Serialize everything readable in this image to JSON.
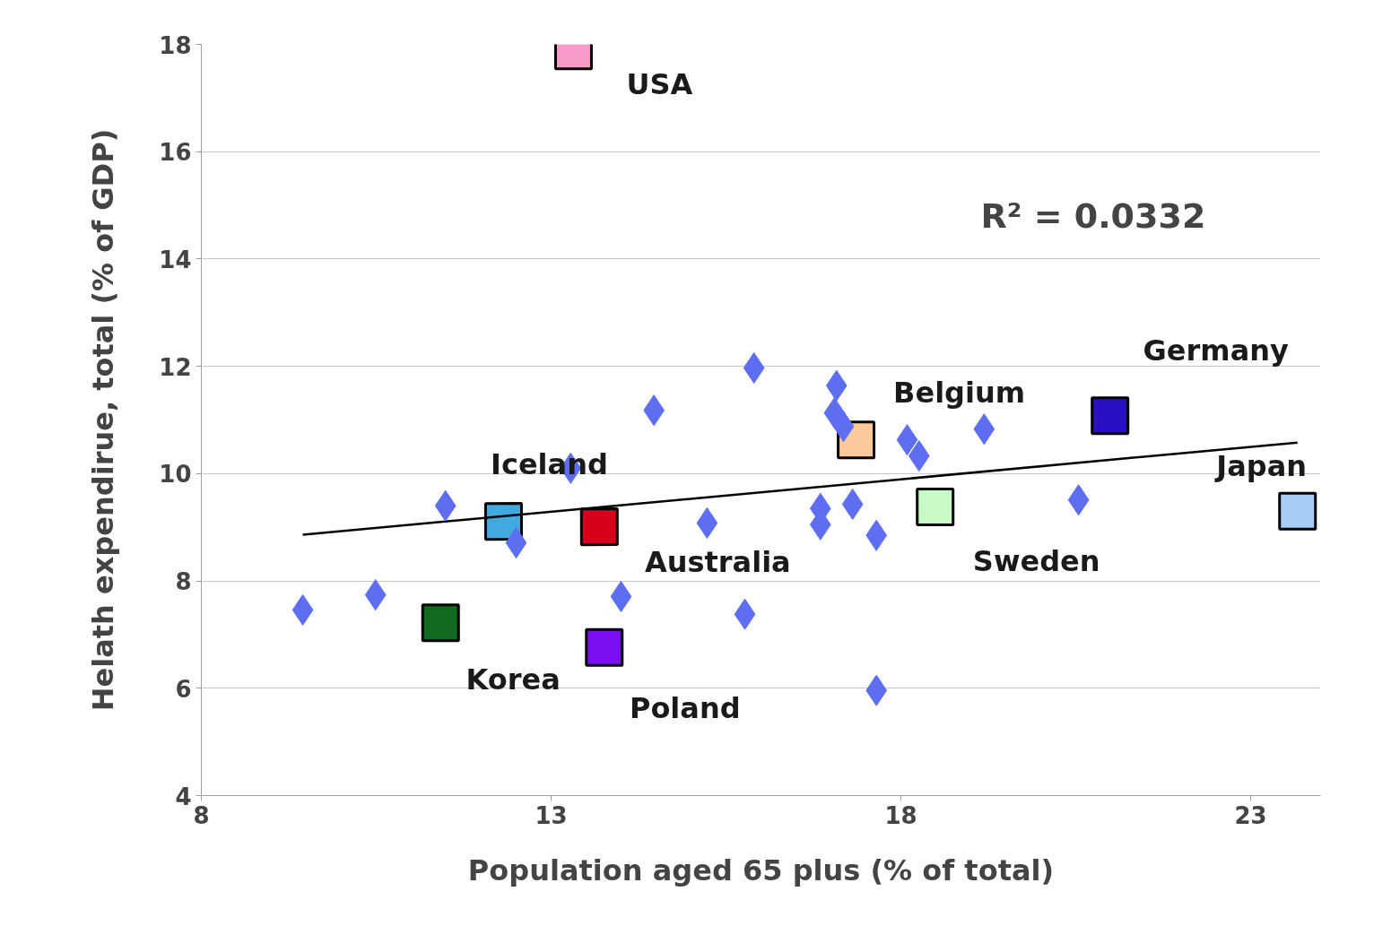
{
  "chart_data": {
    "type": "scatter",
    "xlabel": "Population aged 65 plus (% of total)",
    "ylabel": "Helath expendirue, total (% of GDP)",
    "xlim": [
      8,
      24
    ],
    "ylim": [
      4,
      18
    ],
    "xticks": [
      8,
      13,
      18,
      23
    ],
    "yticks": [
      4,
      6,
      8,
      10,
      12,
      14,
      16,
      18
    ],
    "grid": "y",
    "annotations": [
      "R² = 0.0332"
    ],
    "series": [
      {
        "color": "#5d6ef0",
        "marker": "diamond",
        "x": [
          9.45,
          10.49,
          11.49,
          12.5,
          13.28,
          14.47,
          14.0,
          15.23,
          15.9,
          15.77,
          17.08,
          17.05,
          17.18,
          16.85,
          16.85,
          17.31,
          17.65,
          17.65,
          18.09,
          18.26,
          19.19,
          20.54
        ],
        "values": [
          7.46,
          7.74,
          9.4,
          8.71,
          10.1,
          11.18,
          7.71,
          9.08,
          11.97,
          7.38,
          11.64,
          11.13,
          10.88,
          9.35,
          9.05,
          9.43,
          8.85,
          5.96,
          10.63,
          10.33,
          10.83,
          9.51
        ]
      },
      {
        "name": "USA",
        "color": "#f79ac8",
        "marker": "square",
        "x": [
          13.32
        ],
        "values": [
          17.88
        ]
      },
      {
        "name": "Iceland",
        "color": "#3fa9e0",
        "marker": "square",
        "x": [
          12.32
        ],
        "values": [
          9.11
        ]
      },
      {
        "name": "Australia",
        "color": "#d6001c",
        "marker": "square",
        "x": [
          13.69
        ],
        "values": [
          9.01
        ]
      },
      {
        "name": "Korea",
        "color": "#106b1e",
        "marker": "square",
        "x": [
          11.42
        ],
        "values": [
          7.22
        ]
      },
      {
        "name": "Poland",
        "color": "#7a10f0",
        "marker": "square",
        "x": [
          13.76
        ],
        "values": [
          6.76
        ]
      },
      {
        "name": "Belgium",
        "color": "#fbc99a",
        "marker": "square",
        "x": [
          17.36
        ],
        "values": [
          10.63
        ]
      },
      {
        "name": "Germany",
        "color": "#2a10c4",
        "marker": "square",
        "x": [
          20.99
        ],
        "values": [
          11.08
        ]
      },
      {
        "name": "Sweden",
        "color": "#c8fac8",
        "marker": "square",
        "x": [
          18.49
        ],
        "values": [
          9.38
        ]
      },
      {
        "name": "Japan",
        "color": "#a6cef7",
        "marker": "square",
        "x": [
          23.67
        ],
        "values": [
          9.3
        ]
      },
      {
        "type": "line",
        "color": "#000000",
        "marker": "none",
        "x": [
          9.45,
          23.67
        ],
        "values": [
          8.86,
          10.58
        ]
      }
    ]
  }
}
